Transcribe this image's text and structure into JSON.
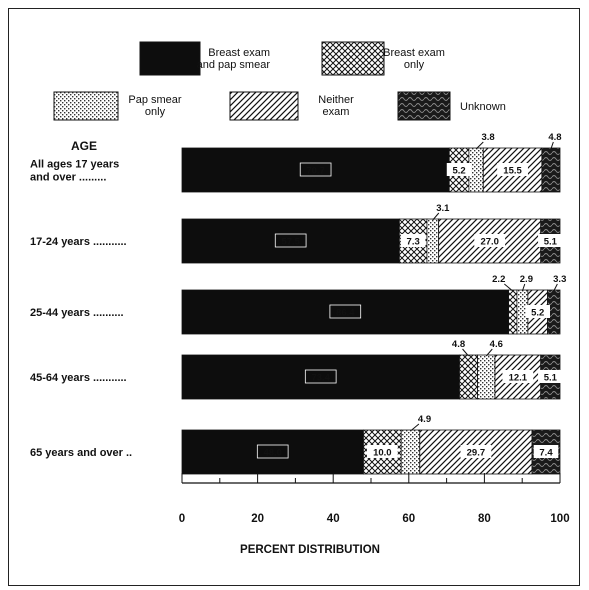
{
  "chart_data": {
    "type": "bar",
    "stacked": true,
    "orientation": "horizontal",
    "ylabel": "AGE",
    "xlabel": "PERCENT DISTRIBUTION",
    "xlim": [
      0,
      100
    ],
    "xticks": [
      0,
      20,
      40,
      60,
      80,
      100
    ],
    "categories": [
      [
        "All ages 17 years",
        "and over ........."
      ],
      [
        "17-24 years ..........."
      ],
      [
        "25-44 years .........."
      ],
      [
        "45-64 years ..........."
      ],
      [
        "65 years and over .."
      ]
    ],
    "legend": [
      {
        "label": [
          "Breast exam",
          "and pap smear"
        ],
        "pattern": "solid"
      },
      {
        "label": [
          "Breast exam",
          "only"
        ],
        "pattern": "crosshatch"
      },
      {
        "label": [
          "Pap smear",
          "only"
        ],
        "pattern": "dots"
      },
      {
        "label": [
          "Neither",
          "exam"
        ],
        "pattern": "diagonal"
      },
      {
        "label": [
          "Unknown"
        ],
        "pattern": "dark-texture"
      }
    ],
    "series": [
      {
        "name": "Breast exam and pap smear",
        "values": [
          70.7,
          57.5,
          86.4,
          73.4,
          48.0
        ],
        "labels": [
          "70.7",
          "57.5",
          "86.4",
          "73.4",
          "48.0"
        ]
      },
      {
        "name": "Breast exam only",
        "values": [
          5.2,
          7.3,
          2.2,
          4.8,
          10.0
        ],
        "labels": [
          "5.2",
          "7.3",
          "2.2",
          "4.8",
          "10.0"
        ]
      },
      {
        "name": "Pap smear only",
        "values": [
          3.8,
          3.1,
          2.9,
          4.6,
          4.9
        ],
        "labels": [
          "3.8",
          "3.1",
          "2.9",
          "4.6",
          "4.9"
        ]
      },
      {
        "name": "Neither exam",
        "values": [
          15.5,
          27.0,
          5.2,
          12.1,
          29.7
        ],
        "labels": [
          "15.5",
          "27.0",
          "5.2",
          "12.1",
          "29.7"
        ]
      },
      {
        "name": "Unknown",
        "values": [
          4.8,
          5.1,
          3.3,
          5.1,
          7.4
        ],
        "labels": [
          "4.8",
          "5.1",
          "3.3",
          "5.1",
          "7.4"
        ]
      }
    ]
  }
}
